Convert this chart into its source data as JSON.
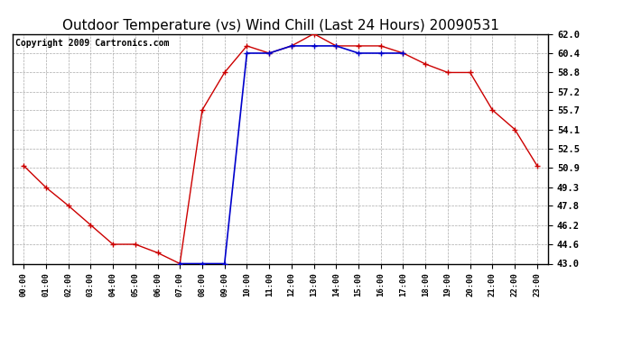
{
  "title": "Outdoor Temperature (vs) Wind Chill (Last 24 Hours) 20090531",
  "copyright": "Copyright 2009 Cartronics.com",
  "hours": [
    "00:00",
    "01:00",
    "02:00",
    "03:00",
    "04:00",
    "05:00",
    "06:00",
    "07:00",
    "08:00",
    "09:00",
    "10:00",
    "11:00",
    "12:00",
    "13:00",
    "14:00",
    "15:00",
    "16:00",
    "17:00",
    "18:00",
    "19:00",
    "20:00",
    "21:00",
    "22:00",
    "23:00"
  ],
  "temp": [
    51.1,
    49.3,
    47.8,
    46.2,
    44.6,
    44.6,
    43.9,
    43.0,
    55.7,
    58.8,
    61.0,
    60.4,
    61.0,
    62.0,
    61.0,
    61.0,
    61.0,
    60.4,
    59.5,
    58.8,
    58.8,
    55.7,
    54.1,
    51.1
  ],
  "wind_chill": [
    null,
    null,
    null,
    null,
    null,
    null,
    null,
    43.0,
    43.0,
    43.0,
    60.4,
    60.4,
    61.0,
    61.0,
    61.0,
    60.4,
    60.4,
    60.4,
    null,
    null,
    null,
    null,
    null,
    null
  ],
  "temp_color": "#cc0000",
  "wind_chill_color": "#0000cc",
  "ylim_min": 43.0,
  "ylim_max": 62.0,
  "yticks": [
    43.0,
    44.6,
    46.2,
    47.8,
    49.3,
    50.9,
    52.5,
    54.1,
    55.7,
    57.2,
    58.8,
    60.4,
    62.0
  ],
  "background_color": "#ffffff",
  "plot_bg_color": "#ffffff",
  "grid_color": "#aaaaaa",
  "title_fontsize": 11,
  "copyright_fontsize": 7,
  "marker": "+"
}
